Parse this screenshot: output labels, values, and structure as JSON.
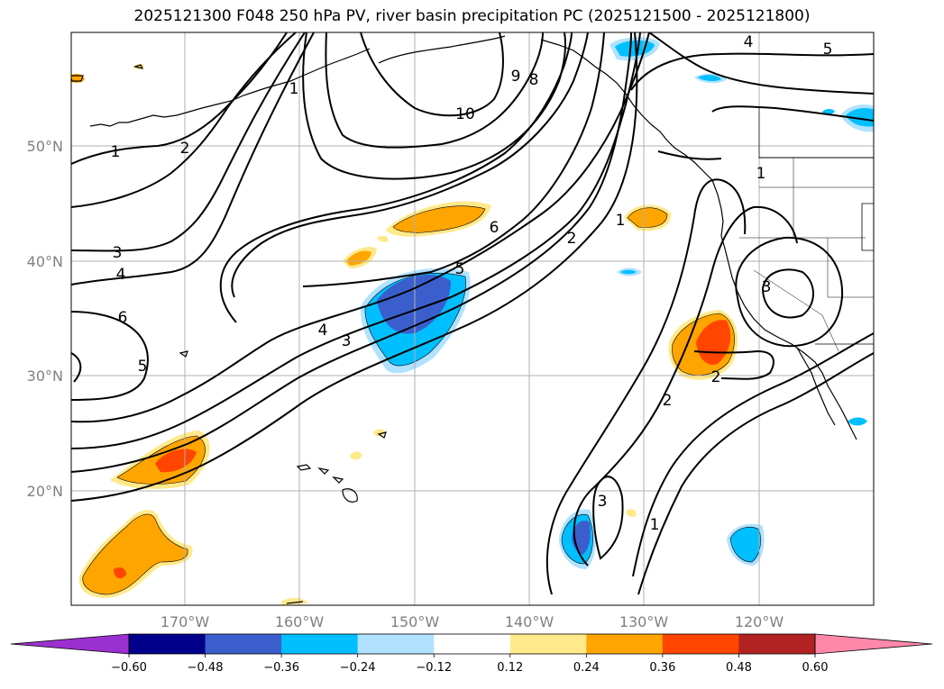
{
  "title": "2025121300 F048 250 hPa PV, river basin precipitation PC (2025121500 - 2025121800)",
  "lat_labels": [
    "50°N",
    "40°N",
    "30°N",
    "20°N"
  ],
  "lon_labels": [
    "170°W",
    "160°W",
    "150°W",
    "140°W",
    "130°W",
    "120°W"
  ],
  "colorbar": {
    "ticks": [
      "−0.60",
      "−0.48",
      "−0.36",
      "−0.24",
      "−0.12",
      "0.12",
      "0.24",
      "0.36",
      "0.48",
      "0.60"
    ],
    "colors": [
      "#9b30d0",
      "#00008b",
      "#3a5fcd",
      "#00bfff",
      "#b0e2ff",
      "#ffffff",
      "#ffe98a",
      "#ffa500",
      "#ff4500",
      "#b22222",
      "#ff88aa"
    ]
  },
  "contour_labels": [
    {
      "text": "1"
    },
    {
      "text": "2"
    },
    {
      "text": "3"
    },
    {
      "text": "4"
    },
    {
      "text": "6"
    },
    {
      "text": "5"
    },
    {
      "text": "1"
    },
    {
      "text": "10"
    },
    {
      "text": "9"
    },
    {
      "text": "8"
    },
    {
      "text": "6"
    },
    {
      "text": "5"
    },
    {
      "text": "4"
    },
    {
      "text": "3"
    },
    {
      "text": "2"
    },
    {
      "text": "1"
    },
    {
      "text": "4"
    },
    {
      "text": "5"
    },
    {
      "text": "1"
    },
    {
      "text": "3"
    },
    {
      "text": "2"
    },
    {
      "text": "2"
    },
    {
      "text": "3"
    },
    {
      "text": "1"
    }
  ],
  "legend_colors": {
    "pos1": "#ffe98a",
    "pos2": "#ffa500",
    "pos3": "#ff4500",
    "neg1": "#b0e2ff",
    "neg2": "#00bfff",
    "neg3": "#3a5fcd"
  }
}
